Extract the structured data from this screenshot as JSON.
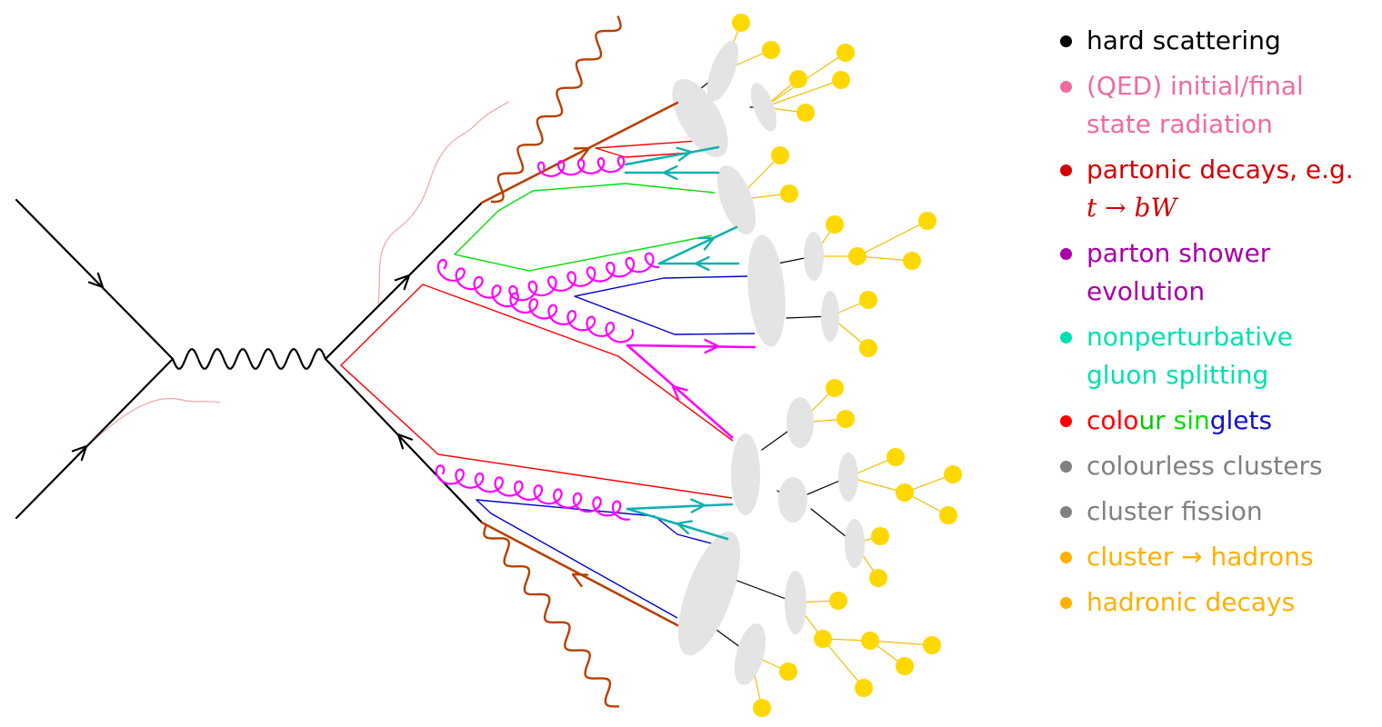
{
  "legend": [
    {
      "label": "hard scattering",
      "color": "#000000"
    },
    {
      "label": "(QED) initial/final\nstate radiation",
      "color": "#f06aa0"
    },
    {
      "label": "partonic decays, e.g.",
      "math": "t → bW",
      "color": "#d40000"
    },
    {
      "label": "parton shower\nevolution",
      "color": "#a800a8"
    },
    {
      "label": "nonperturbative\ngluon splitting",
      "color": "#00e0b0"
    },
    {
      "parts": [
        {
          "text": "colo",
          "color": "#ff0000"
        },
        {
          "text": "ur ",
          "color": "#00c800"
        },
        {
          "text": "sin",
          "color": "#00e000"
        },
        {
          "text": "glets",
          "color": "#1010d0"
        }
      ],
      "color": "#ff0000"
    },
    {
      "label": "colourless clusters",
      "color": "#808080"
    },
    {
      "label": "cluster fission",
      "color": "#808080"
    },
    {
      "label": "cluster → hadrons",
      "color": "#ffb000"
    },
    {
      "label": "hadronic decays",
      "color": "#ffb000"
    }
  ],
  "colors": {
    "quark": "#000000",
    "boson": "#000000",
    "photon": "#b84000",
    "qed_soft": "#f4a4a4",
    "gluon": "#ff00ff",
    "split": "#10b0b0",
    "singlet_red": "#ff0000",
    "singlet_green": "#00e000",
    "singlet_blue": "#0000d0",
    "decay_top": "#d00000",
    "cluster": "#e4e4e4",
    "hadron": "#ffd800",
    "hadron_line": "#f0c000"
  }
}
